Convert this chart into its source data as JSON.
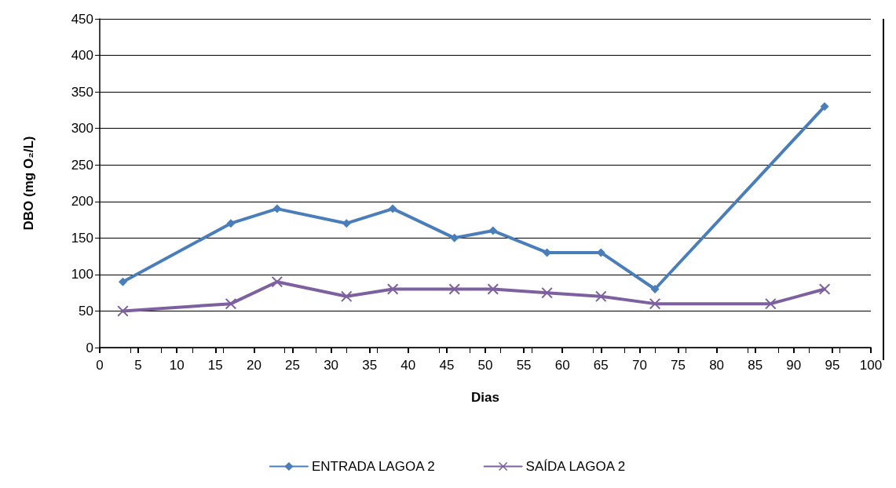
{
  "chart_data": {
    "type": "line",
    "xlabel": "Dias",
    "ylabel": "DBO (mg O₂/L)",
    "xlim": [
      0,
      100
    ],
    "xticks": [
      0,
      5,
      10,
      15,
      20,
      25,
      30,
      35,
      40,
      45,
      50,
      55,
      60,
      65,
      70,
      75,
      80,
      85,
      90,
      95,
      100
    ],
    "ylim": [
      0,
      450
    ],
    "yticks": [
      0,
      50,
      100,
      150,
      200,
      250,
      300,
      350,
      400,
      450
    ],
    "grid": "y",
    "legend": "bottom",
    "series": [
      {
        "name": "ENTRADA LAGOA 2",
        "color": "#4a7ebb",
        "marker": "diamond",
        "x": [
          3,
          17,
          23,
          32,
          38,
          46,
          51,
          58,
          65,
          72,
          94
        ],
        "values": [
          90,
          170,
          190,
          170,
          190,
          150,
          160,
          130,
          130,
          80,
          330
        ]
      },
      {
        "name": "SAÍDA LAGOA 2",
        "color": "#7d60a0",
        "marker": "cross",
        "x": [
          3,
          17,
          23,
          32,
          38,
          46,
          51,
          58,
          65,
          72,
          87,
          94
        ],
        "values": [
          50,
          60,
          90,
          70,
          80,
          80,
          80,
          75,
          70,
          60,
          60,
          80
        ]
      }
    ]
  }
}
